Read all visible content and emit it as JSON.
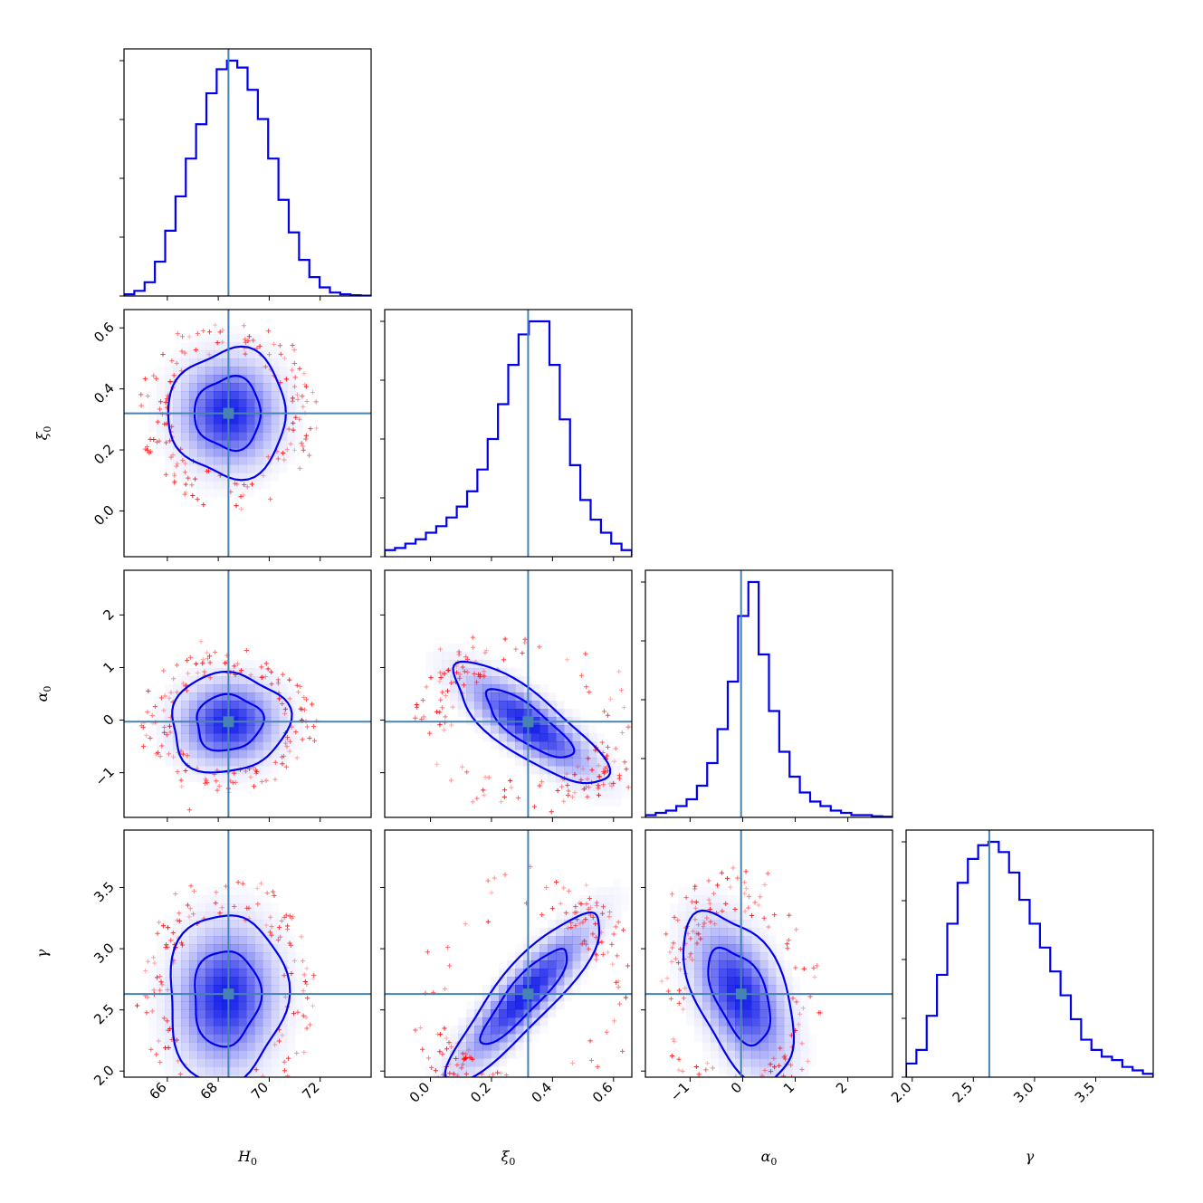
{
  "chart_data": {
    "type": "corner",
    "title": "",
    "parameters": [
      {
        "key": "H0",
        "label": "H",
        "sub": "0",
        "range": [
          64.3,
          74.0
        ],
        "ticks": [
          66,
          68,
          70,
          72
        ],
        "tick_labels": [
          "66",
          "68",
          "70",
          "72"
        ],
        "truth": 68.4
      },
      {
        "key": "xi0",
        "label": "ξ",
        "sub": "0",
        "range": [
          -0.15,
          0.66
        ],
        "ticks": [
          0.0,
          0.2,
          0.4,
          0.6
        ],
        "tick_labels": [
          "0.0",
          "0.2",
          "0.4",
          "0.6"
        ],
        "truth": 0.32
      },
      {
        "key": "alpha0",
        "label": "α",
        "sub": "0",
        "range": [
          -1.85,
          2.85
        ],
        "ticks": [
          -1,
          0,
          1,
          2
        ],
        "tick_labels": [
          "−1",
          "0",
          "1",
          "2"
        ],
        "truth": -0.03
      },
      {
        "key": "gamma",
        "label": "γ",
        "sub": "",
        "range": [
          1.95,
          3.97
        ],
        "ticks": [
          2.0,
          2.5,
          3.0,
          3.5
        ],
        "tick_labels": [
          "2.0",
          "2.5",
          "3.0",
          "3.5"
        ],
        "truth": 2.63
      }
    ],
    "marginal_histograms": [
      {
        "param": "H0",
        "bin_edges_range": [
          64.3,
          74.0
        ],
        "counts": [
          1,
          3,
          8,
          20,
          38,
          58,
          80,
          100,
          118,
          132,
          137,
          133,
          120,
          103,
          80,
          56,
          37,
          21,
          11,
          5,
          2,
          1,
          0.5,
          0.2
        ]
      },
      {
        "param": "xi0",
        "bin_edges_range": [
          -0.15,
          0.66
        ],
        "counts": [
          3,
          4,
          6,
          8,
          11,
          14,
          18,
          23,
          30,
          40,
          54,
          70,
          88,
          102,
          108,
          108,
          88,
          63,
          42,
          26,
          17,
          11,
          6,
          3
        ]
      },
      {
        "param": "alpha0",
        "bin_edges_range": [
          -1.85,
          2.85
        ],
        "counts": [
          1,
          2,
          3,
          5,
          8,
          14,
          24,
          39,
          60,
          89,
          104,
          72,
          47,
          29,
          18,
          11,
          7,
          5,
          3,
          2,
          1,
          1,
          0.5,
          0.3
        ]
      },
      {
        "param": "gamma",
        "bin_edges_range": [
          1.95,
          3.97
        ],
        "counts": [
          4,
          8,
          18,
          30,
          45,
          57,
          64,
          68,
          69,
          66,
          60,
          52,
          45,
          38,
          31,
          24,
          17,
          11,
          8,
          6,
          5,
          3,
          2,
          1
        ]
      }
    ],
    "joint": [
      {
        "x": "H0",
        "y": "xi0",
        "center": [
          68.4,
          0.32
        ],
        "sigma": [
          1.1,
          0.1
        ],
        "rho": 0.0
      },
      {
        "x": "H0",
        "y": "alpha0",
        "center": [
          68.4,
          -0.05
        ],
        "sigma": [
          1.1,
          0.45
        ],
        "rho": 0.05
      },
      {
        "x": "xi0",
        "y": "alpha0",
        "center": [
          0.32,
          -0.08
        ],
        "sigma": [
          0.12,
          0.55
        ],
        "rho": -0.8
      },
      {
        "x": "H0",
        "y": "gamma",
        "center": [
          68.3,
          2.6
        ],
        "sigma": [
          1.1,
          0.33
        ],
        "rho": 0.05
      },
      {
        "x": "xi0",
        "y": "gamma",
        "center": [
          0.31,
          2.62
        ],
        "sigma": [
          0.12,
          0.33
        ],
        "rho": 0.88
      },
      {
        "x": "alpha0",
        "y": "gamma",
        "center": [
          -0.05,
          2.62
        ],
        "sigma": [
          0.5,
          0.33
        ],
        "rho": -0.5
      }
    ],
    "grid": false,
    "colors": {
      "contour": "#0000ee",
      "truth": "#4682b4",
      "scatter": "#ff0000",
      "density": "#0a14e6",
      "frame": "#000000"
    }
  }
}
